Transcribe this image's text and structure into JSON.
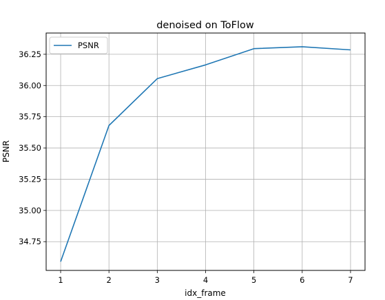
{
  "chart_data": {
    "type": "line",
    "title": "denoised on ToFlow",
    "xlabel": "idx_frame",
    "ylabel": "PSNR",
    "x": [
      1,
      2,
      3,
      4,
      5,
      6,
      7
    ],
    "xticks": [
      "1",
      "2",
      "3",
      "4",
      "5",
      "6",
      "7"
    ],
    "yticks": [
      "34.75",
      "35.00",
      "35.25",
      "35.50",
      "35.75",
      "36.00",
      "36.25"
    ],
    "ylim": [
      34.52,
      36.42
    ],
    "xlim": [
      0.7,
      7.3
    ],
    "grid": true,
    "legend_position": "upper-left",
    "series": [
      {
        "name": "PSNR",
        "color": "#1f77b4",
        "values": [
          34.59,
          35.68,
          36.055,
          36.165,
          36.295,
          36.31,
          36.285
        ]
      }
    ]
  }
}
